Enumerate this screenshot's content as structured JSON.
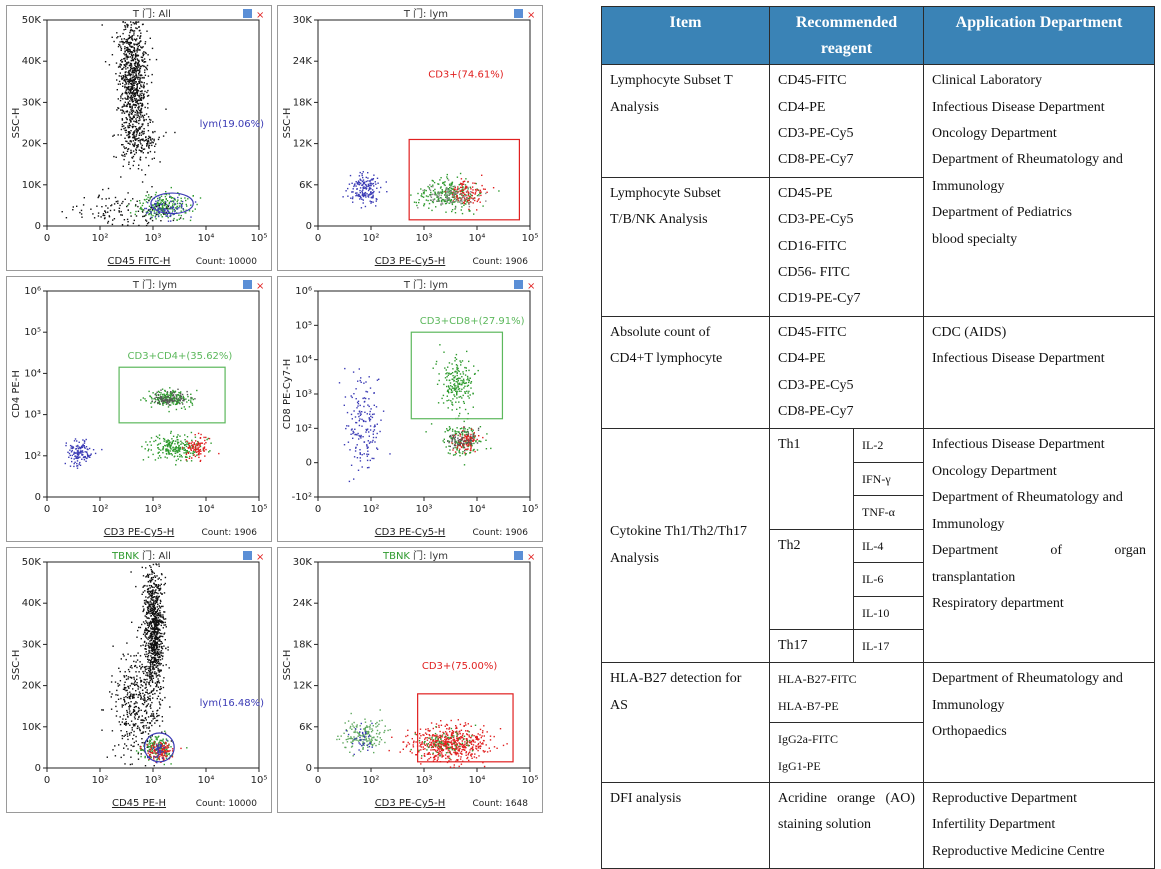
{
  "panels": [
    {
      "title_prefix": "T",
      "title": "门: All",
      "title_color": "#333333",
      "ylab": "SSC-H",
      "xlab": "CD45 FITC-H",
      "count": "Count: 10000",
      "yticks": [
        "0",
        "10K",
        "20K",
        "30K",
        "40K",
        "50K"
      ],
      "xticks": [
        "0",
        "10²",
        "10³",
        "10⁴",
        "10⁵"
      ],
      "gate_label": "lym(19.06%)",
      "gate_color": "#3b3bb5"
    },
    {
      "title_prefix": "T",
      "title": "门: lym",
      "title_color": "#333333",
      "ylab": "SSC-H",
      "xlab": "CD3 PE-Cy5-H",
      "count": "Count: 1906",
      "yticks": [
        "0",
        "6K",
        "12K",
        "18K",
        "24K",
        "30K"
      ],
      "xticks": [
        "0",
        "10²",
        "10³",
        "10⁴",
        "10⁵"
      ],
      "gate_label": "CD3+(74.61%)",
      "gate_color": "#e02020"
    },
    {
      "title_prefix": "T",
      "title": "门: lym",
      "title_color": "#333333",
      "ylab": "CD4 PE-H",
      "xlab": "CD3 PE-Cy5-H",
      "count": "Count: 1906",
      "yticks": [
        "0",
        "10²",
        "10³",
        "10⁴",
        "10⁵",
        "10⁶"
      ],
      "xticks": [
        "0",
        "10²",
        "10³",
        "10⁴",
        "10⁵"
      ],
      "gate_label": "CD3+CD4+(35.62%)",
      "gate_color": "#5cb85c"
    },
    {
      "title_prefix": "T",
      "title": "门: lym",
      "title_color": "#333333",
      "ylab": "CD8 PE-Cy7-H",
      "xlab": "CD3 PE-Cy5-H",
      "count": "Count: 1906",
      "yticks": [
        "-10²",
        "0",
        "10²",
        "10³",
        "10⁴",
        "10⁵",
        "10⁶"
      ],
      "xticks": [
        "0",
        "10²",
        "10³",
        "10⁴",
        "10⁵"
      ],
      "gate_label": "CD3+CD8+(27.91%)",
      "gate_color": "#5cb85c"
    },
    {
      "title_prefix": "TBNK",
      "title": "门: All",
      "title_color": "#2e9a2e",
      "ylab": "SSC-H",
      "xlab": "CD45 PE-H",
      "count": "Count: 10000",
      "yticks": [
        "0",
        "10K",
        "20K",
        "30K",
        "40K",
        "50K"
      ],
      "xticks": [
        "0",
        "10²",
        "10³",
        "10⁴",
        "10⁵"
      ],
      "gate_label": "lym(16.48%)",
      "gate_color": "#3b3bb5"
    },
    {
      "title_prefix": "TBNK",
      "title": "门: lym",
      "title_color": "#2e9a2e",
      "ylab": "SSC-H",
      "xlab": "CD3 PE-Cy5-H",
      "count": "Count: 1648",
      "yticks": [
        "0",
        "6K",
        "12K",
        "18K",
        "24K",
        "30K"
      ],
      "xticks": [
        "0",
        "10²",
        "10³",
        "10⁴",
        "10⁵"
      ],
      "gate_label": "CD3+(75.00%)",
      "gate_color": "#e02020"
    }
  ],
  "table": {
    "headers": [
      "Item",
      "Recommended reagent",
      "Application Department"
    ],
    "r1": {
      "item": [
        "Lymphocyte Subset T",
        "Analysis"
      ],
      "reagents": [
        "CD45-FITC",
        "CD4-PE",
        "CD3-PE-Cy5",
        "CD8-PE-Cy7"
      ],
      "dept": [
        "Clinical Laboratory",
        "Infectious Disease Department",
        "Oncology Department",
        "Department of Rheumatology and",
        "Immunology",
        "Department of Pediatrics",
        "blood specialty"
      ]
    },
    "r2": {
      "item": [
        "Lymphocyte Subset",
        "T/B/NK Analysis"
      ],
      "reagents": [
        "CD45-PE",
        "CD3-PE-Cy5",
        "CD16-FITC",
        "CD56- FITC",
        "CD19-PE-Cy7"
      ]
    },
    "r3": {
      "item": [
        "Absolute count of",
        "CD4+T lymphocyte"
      ],
      "reagents": [
        "CD45-FITC",
        "CD4-PE",
        "CD3-PE-Cy5",
        "CD8-PE-Cy7"
      ],
      "dept": [
        "CDC (AIDS)",
        "Infectious Disease Department"
      ]
    },
    "r4": {
      "item": [
        "Cytokine Th1/Th2/Th17",
        "Analysis"
      ],
      "th1": "Th1",
      "th2": "Th2",
      "th17": "Th17",
      "th1_il": [
        "IL-2",
        "IFN-γ",
        "TNF-α"
      ],
      "th2_il": [
        "IL-4",
        "IL-6",
        "IL-10"
      ],
      "th17_il": "IL-17",
      "dept": [
        "Infectious Disease Department",
        "Oncology Department",
        "Department of Rheumatology and",
        "Immunology"
      ],
      "dept_just": [
        "Department",
        "of",
        "organ"
      ],
      "dept_tail": [
        "transplantation",
        "Respiratory department"
      ]
    },
    "r5": {
      "item": [
        "HLA-B27 detection for",
        "AS"
      ],
      "reagents_a": [
        "HLA-B27-FITC",
        "HLA-B7-PE"
      ],
      "reagents_b": [
        "IgG2a-FITC",
        "IgG1-PE"
      ],
      "dept": [
        "Department of Rheumatology and",
        "Immunology",
        "Orthopaedics"
      ]
    },
    "r6": {
      "item": "DFI analysis",
      "reagent_just": [
        "Acridine",
        "orange",
        "(AO)"
      ],
      "reagent_tail": "staining solution",
      "dept": [
        "Reproductive Department",
        "Infertility Department",
        "Reproductive Medicine Centre"
      ]
    }
  }
}
